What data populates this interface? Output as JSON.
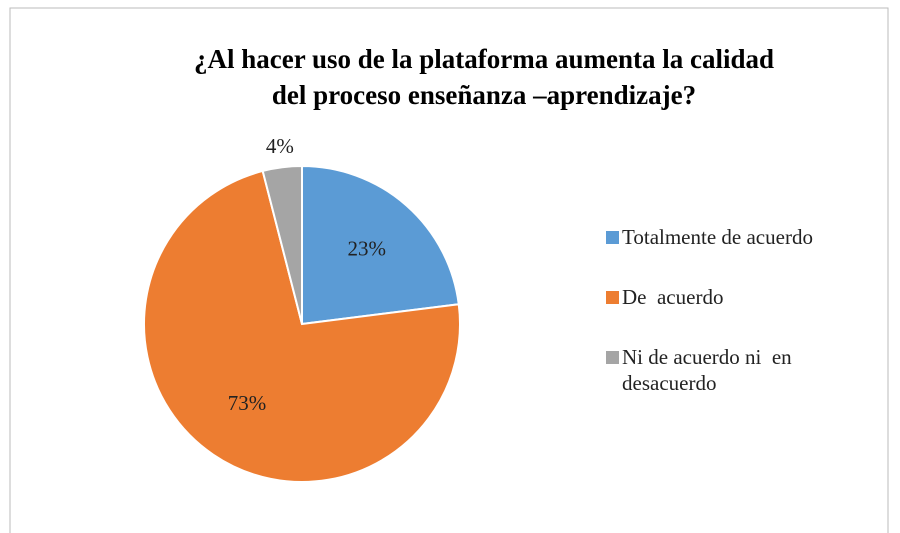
{
  "chart_data": {
    "type": "pie",
    "title": [
      "¿Al hacer uso de la  plataforma aumenta la  calidad",
      "del  proceso enseñanza –aprendizaje?"
    ],
    "categories": [
      "Totalmente de acuerdo",
      "De  acuerdo",
      "Ni de acuerdo ni  en desacuerdo"
    ],
    "values": [
      23,
      73,
      4
    ],
    "value_labels": [
      "23%",
      "73%",
      "4%"
    ],
    "colors": [
      "#5b9bd5",
      "#ed7d31",
      "#a5a5a5"
    ],
    "legend": "right"
  }
}
